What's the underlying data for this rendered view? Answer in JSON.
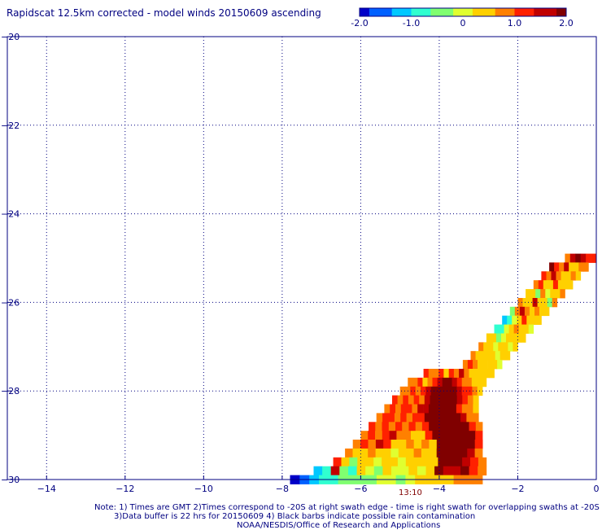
{
  "title": "Rapidscat 12.5km corrected - model winds 20150609 ascending",
  "colorbar": {
    "ticks": [
      "-2.0",
      "-1.0",
      "0",
      "1.0",
      "2.0"
    ],
    "tick_values": [
      -2,
      -1,
      0,
      1,
      2
    ],
    "colors": [
      "#0000c8",
      "#0060ff",
      "#00c8ff",
      "#30ffd0",
      "#80ff70",
      "#e0ff30",
      "#ffd000",
      "#ff8000",
      "#ff2000",
      "#c00000",
      "#800000"
    ]
  },
  "time_label": "13:10",
  "notes": {
    "line1": "Note: 1) Times are GMT 2)Times correspond to -20S at right swath edge - time is right swath for overlapping swaths at -20S",
    "line2": "3)Data buffer is 22 hrs for 20150609 4) Black barbs indicate possible rain contamination",
    "line3": "NOAA/NESDIS/Office of Research and Applications"
  },
  "chart_data": {
    "type": "heatmap",
    "title": "Rapidscat 12.5km corrected - model winds 20150609 ascending",
    "xlim": [
      -15,
      0
    ],
    "ylim": [
      -30,
      -20
    ],
    "xticks": [
      -14,
      -12,
      -10,
      -8,
      -6,
      -4,
      -2,
      0
    ],
    "yticks": [
      -20,
      -22,
      -24,
      -26,
      -28,
      -30
    ],
    "grid": true,
    "colorbar_range": [
      -2,
      2
    ],
    "cell_size_deg": 0.125,
    "swath_rows": [
      {
        "y": -25.0,
        "x0": -0.8,
        "x1": 0.0,
        "vals": [
          0.8,
          1.6,
          1.9,
          1.6,
          1.2,
          1.0
        ]
      },
      {
        "y": -25.2,
        "x0": -1.2,
        "x1": -0.2,
        "vals": [
          1.9,
          1.2,
          0.7,
          1.5,
          0.5,
          0.3,
          0.8,
          0.6
        ]
      },
      {
        "y": -25.4,
        "x0": -1.4,
        "x1": -0.4,
        "vals": [
          1.3,
          0.6,
          1.5,
          0.9,
          0.2,
          0.4,
          0.7,
          0.5
        ]
      },
      {
        "y": -25.6,
        "x0": -1.6,
        "x1": -0.6,
        "vals": [
          0.6,
          1.2,
          0.4,
          0.3,
          1.1,
          0.2,
          0.5,
          0.4
        ]
      },
      {
        "y": -25.8,
        "x0": -1.8,
        "x1": -0.8,
        "vals": [
          0.3,
          0.2,
          -0.5,
          0.6,
          0.1,
          0.4,
          0.2,
          0.7
        ]
      },
      {
        "y": -26.0,
        "x0": -2.0,
        "x1": -1.0,
        "vals": [
          0.7,
          0.4,
          0.2,
          1.4,
          0.5,
          0.3,
          -0.3,
          0.6
        ]
      },
      {
        "y": -26.2,
        "x0": -2.2,
        "x1": -1.2,
        "vals": [
          -0.6,
          0.8,
          1.6,
          0.9,
          0.3,
          0.6,
          0.2,
          0.4
        ]
      },
      {
        "y": -26.4,
        "x0": -2.4,
        "x1": -1.4,
        "vals": [
          -1.1,
          -0.7,
          0.1,
          0.4,
          1.0,
          0.3,
          0.2,
          0.5
        ]
      },
      {
        "y": -26.6,
        "x0": -2.6,
        "x1": -1.6,
        "vals": [
          -0.8,
          -1.0,
          -0.2,
          0.3,
          0.6,
          0.2,
          0.4,
          0.1
        ]
      },
      {
        "y": -26.8,
        "x0": -2.8,
        "x1": -1.8,
        "vals": [
          0.4,
          0.2,
          -0.3,
          0.1,
          0.5,
          0.3,
          0.2,
          0.4
        ]
      },
      {
        "y": -27.0,
        "x0": -3.0,
        "x1": -2.0,
        "vals": [
          0.6,
          0.3,
          0.2,
          0.0,
          0.4,
          0.5,
          0.1,
          0.3
        ]
      },
      {
        "y": -27.2,
        "x0": -3.2,
        "x1": -2.2,
        "vals": [
          0.7,
          0.5,
          0.4,
          0.2,
          0.3,
          0.1,
          0.4,
          0.2
        ]
      },
      {
        "y": -27.4,
        "x0": -3.4,
        "x1": -2.4,
        "vals": [
          0.8,
          1.1,
          0.6,
          0.4,
          0.2,
          0.5,
          0.3,
          0.1
        ]
      },
      {
        "y": -27.6,
        "x0": -4.4,
        "x1": -2.6,
        "vals": [
          1.0,
          0.7,
          0.9,
          1.2,
          0.5,
          1.3,
          0.6,
          1.4,
          0.8,
          0.4,
          0.3,
          0.2,
          0.5,
          0.3
        ]
      },
      {
        "y": -27.8,
        "x0": -4.8,
        "x1": -2.8,
        "vals": [
          0.9,
          0.6,
          1.1,
          0.5,
          0.8,
          1.3,
          1.6,
          1.9,
          2.0,
          1.5,
          1.1,
          0.8,
          0.6,
          0.4,
          0.3,
          0.2
        ]
      },
      {
        "y": -28.0,
        "x0": -5.0,
        "x1": -2.9,
        "vals": [
          0.7,
          0.9,
          1.2,
          0.8,
          1.0,
          1.4,
          1.8,
          2.0,
          2.0,
          2.0,
          1.9,
          1.6,
          1.2,
          1.0,
          0.6,
          0.4
        ]
      },
      {
        "y": -28.2,
        "x0": -5.2,
        "x1": -3.0,
        "vals": [
          1.0,
          0.8,
          1.2,
          0.9,
          1.3,
          0.7,
          1.5,
          2.0,
          2.0,
          2.0,
          2.0,
          2.0,
          1.6,
          1.1,
          0.7,
          0.5
        ]
      },
      {
        "y": -28.4,
        "x0": -5.4,
        "x1": -3.0,
        "vals": [
          0.9,
          1.1,
          0.7,
          1.2,
          1.0,
          0.6,
          1.4,
          1.7,
          2.0,
          2.0,
          2.0,
          2.0,
          2.0,
          1.3,
          0.8,
          0.6,
          0.4
        ]
      },
      {
        "y": -28.6,
        "x0": -5.6,
        "x1": -3.0,
        "vals": [
          0.8,
          1.2,
          1.0,
          0.7,
          1.1,
          0.9,
          1.3,
          1.0,
          1.8,
          2.0,
          2.0,
          2.0,
          2.0,
          2.0,
          1.4,
          0.9,
          0.6
        ]
      },
      {
        "y": -28.8,
        "x0": -5.8,
        "x1": -2.9,
        "vals": [
          1.1,
          0.9,
          1.3,
          0.8,
          1.0,
          0.7,
          1.2,
          0.9,
          1.0,
          2.0,
          2.0,
          2.0,
          2.0,
          2.0,
          2.0,
          1.2,
          0.8
        ]
      },
      {
        "y": -29.0,
        "x0": -6.0,
        "x1": -2.9,
        "vals": [
          0.9,
          1.2,
          0.8,
          1.0,
          1.5,
          0.6,
          0.8,
          0.5,
          0.3,
          1.1,
          2.0,
          2.0,
          2.0,
          2.0,
          2.0,
          2.0,
          1.0
        ]
      },
      {
        "y": -29.2,
        "x0": -6.2,
        "x1": -2.9,
        "vals": [
          0.7,
          1.0,
          0.9,
          1.6,
          1.3,
          0.5,
          0.4,
          0.6,
          0.2,
          0.8,
          0.4,
          2.0,
          2.0,
          2.0,
          2.0,
          2.0,
          1.2
        ]
      },
      {
        "y": -29.4,
        "x0": -6.4,
        "x1": -2.9,
        "vals": [
          0.8,
          0.5,
          0.3,
          0.9,
          0.2,
          0.4,
          0.1,
          0.5,
          0.3,
          0.6,
          0.2,
          0.4,
          2.0,
          2.0,
          2.0,
          2.0,
          1.4,
          0.9
        ]
      },
      {
        "y": -29.6,
        "x0": -6.7,
        "x1": -2.8,
        "vals": [
          1.0,
          0.3,
          -0.3,
          0.5,
          0.2,
          -0.2,
          0.3,
          0.5,
          0.1,
          0.4,
          0.2,
          0.3,
          0.5,
          1.8,
          2.0,
          2.0,
          1.7,
          1.0,
          0.6
        ]
      },
      {
        "y": -29.8,
        "x0": -7.2,
        "x1": -2.8,
        "vals": [
          -1.4,
          -0.8,
          1.6,
          -0.4,
          -0.9,
          0.3,
          0.1,
          -0.3,
          0.2,
          -0.2,
          0.1,
          0.2,
          0.0,
          0.3,
          2.0,
          1.6,
          1.4,
          2.0,
          1.2,
          0.6
        ]
      },
      {
        "y": -30.0,
        "x0": -7.8,
        "x1": -2.9,
        "vals": [
          -2.0,
          -1.6,
          -1.2,
          -0.9,
          -0.7,
          -0.5,
          -0.3,
          -0.4,
          -0.6,
          -0.2,
          -0.1,
          -0.3,
          0.1,
          0.2,
          0.3,
          0.4,
          0.5,
          0.6,
          0.8,
          0.7
        ]
      }
    ]
  }
}
